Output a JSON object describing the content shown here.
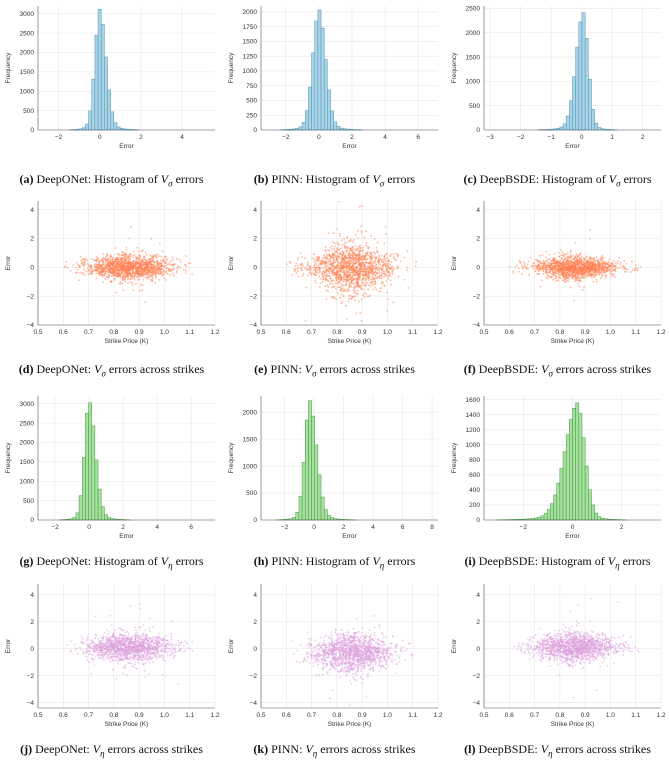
{
  "rows": [
    {
      "kind": "hist",
      "color": "#a9d4e6",
      "edge": "#4f93b8",
      "var_symbol": "V",
      "var_sub": "σ",
      "panels": [
        {
          "caption_tag": "(a)",
          "caption_text": "DeepONet: Histogram of",
          "caption_tail": "errors",
          "chart_data": {
            "type": "bar",
            "xlabel": "Error",
            "ylabel": "Frequency",
            "xlim": [
              -3,
              5.6
            ],
            "ylim": [
              0,
              3200
            ],
            "xticks": [
              -2,
              0,
              2,
              4
            ],
            "yticks": [
              0,
              500,
              1000,
              1500,
              2000,
              2500,
              3000
            ],
            "peak": 3120,
            "center": 0,
            "spread_left": 0.35,
            "spread_right": 0.45
          }
        },
        {
          "caption_tag": "(b)",
          "caption_text": "PINN: Histogram of",
          "caption_tail": "errors",
          "chart_data": {
            "type": "bar",
            "xlabel": "Error",
            "ylabel": "Frequency",
            "xlim": [
              -3.5,
              7.2
            ],
            "ylim": [
              0,
              2100
            ],
            "xticks": [
              -2,
              0,
              2,
              4,
              6
            ],
            "yticks": [
              0,
              250,
              500,
              750,
              1000,
              1250,
              1500,
              1750,
              2000
            ],
            "peak": 2050,
            "center": 0,
            "spread_left": 0.55,
            "spread_right": 0.6
          }
        },
        {
          "caption_tag": "(c)",
          "caption_text": "DeepBSDE: Histogram of",
          "caption_tail": "errors",
          "chart_data": {
            "type": "bar",
            "xlabel": "Error",
            "ylabel": "Frequency",
            "xlim": [
              -3.2,
              2.6
            ],
            "ylim": [
              0,
              2550
            ],
            "xticks": [
              -3,
              -2,
              -1,
              0,
              1,
              2
            ],
            "yticks": [
              0,
              500,
              1000,
              1500,
              2000,
              2500
            ],
            "peak": 2430,
            "center": 0.05,
            "spread_left": 0.35,
            "spread_right": 0.25
          }
        }
      ]
    },
    {
      "kind": "scatter",
      "color": "#ff7f50",
      "var_symbol": "V",
      "var_sub": "σ",
      "panels": [
        {
          "caption_tag": "(d)",
          "caption_text": "DeepONet:",
          "caption_tail": "errors across strikes",
          "chart_data": {
            "type": "scatter",
            "xlabel": "Strike Price (K)",
            "ylabel": "Error",
            "xlim": [
              0.5,
              1.2
            ],
            "ylim": [
              -4,
              4.6
            ],
            "xticks": [
              0.5,
              0.6,
              0.7,
              0.8,
              0.9,
              1.0,
              1.1,
              1.2
            ],
            "xtick_labels": [
              "0.5",
              "0.6",
              "0.7",
              "0.8",
              "0.9",
              "1.0",
              "1.1",
              "1.2"
            ],
            "yticks": [
              -4,
              -2,
              0,
              2,
              4
            ],
            "x_range": [
              0.6,
              1.12
            ],
            "spread": 0.45,
            "x_center": 0.86,
            "bias": 0
          }
        },
        {
          "caption_tag": "(e)",
          "caption_text": "PINN:",
          "caption_tail": "errors across strikes",
          "chart_data": {
            "type": "scatter",
            "xlabel": "Strike Price (K)",
            "ylabel": "Error",
            "xlim": [
              0.5,
              1.2
            ],
            "ylim": [
              -4,
              4.6
            ],
            "xticks": [
              0.5,
              0.6,
              0.7,
              0.8,
              0.9,
              1.0,
              1.1,
              1.2
            ],
            "xtick_labels": [
              "0.5",
              "0.6",
              "0.7",
              "0.8",
              "0.9",
              "1.0",
              "1.1",
              "1.2"
            ],
            "yticks": [
              -4,
              -2,
              0,
              2,
              4
            ],
            "x_range": [
              0.6,
              1.12
            ],
            "spread": 0.85,
            "x_center": 0.86,
            "bias": 0
          }
        },
        {
          "caption_tag": "(f)",
          "caption_text": "DeepBSDE:",
          "caption_tail": "errors across strikes",
          "chart_data": {
            "type": "scatter",
            "xlabel": "Strike Price (K)",
            "ylabel": "Error",
            "xlim": [
              0.5,
              1.2
            ],
            "ylim": [
              -4,
              4.6
            ],
            "xticks": [
              0.5,
              0.6,
              0.7,
              0.8,
              0.9,
              1.0,
              1.1,
              1.2
            ],
            "xtick_labels": [
              "0.5",
              "0.6",
              "0.7",
              "0.8",
              "0.9",
              "1.0",
              "1.1",
              "1.2"
            ],
            "yticks": [
              -4,
              -2,
              0,
              2,
              4
            ],
            "x_range": [
              0.6,
              1.12
            ],
            "spread": 0.38,
            "x_center": 0.86,
            "bias": 0
          }
        }
      ]
    },
    {
      "kind": "hist",
      "color": "#a8e0a0",
      "edge": "#3e9a3e",
      "var_symbol": "V",
      "var_sub": "η",
      "panels": [
        {
          "caption_tag": "(g)",
          "caption_text": "DeepONet: Histogram of",
          "caption_tail": "errors",
          "chart_data": {
            "type": "bar",
            "xlabel": "Error",
            "ylabel": "Frequency",
            "xlim": [
              -3,
              7.4
            ],
            "ylim": [
              0,
              3200
            ],
            "xticks": [
              -2,
              0,
              2,
              4,
              6
            ],
            "yticks": [
              0,
              500,
              1000,
              1500,
              2000,
              2500,
              3000
            ],
            "peak": 3100,
            "center": 0,
            "spread_left": 0.4,
            "spread_right": 0.55
          }
        },
        {
          "caption_tag": "(h)",
          "caption_text": "PINN: Histogram of",
          "caption_tail": "errors",
          "chart_data": {
            "type": "bar",
            "xlabel": "Error",
            "ylabel": "Frequency",
            "xlim": [
              -3.6,
              8.4
            ],
            "ylim": [
              0,
              2300
            ],
            "xticks": [
              -2,
              0,
              2,
              4,
              6,
              8
            ],
            "yticks": [
              0,
              500,
              1000,
              1500,
              2000
            ],
            "peak": 2220,
            "center": -0.3,
            "spread_left": 0.5,
            "spread_right": 0.7
          }
        },
        {
          "caption_tag": "(i)",
          "caption_text": "DeepBSDE: Histogram of",
          "caption_tail": "errors",
          "chart_data": {
            "type": "bar",
            "xlabel": "Error",
            "ylabel": "Frequency",
            "xlim": [
              -3.6,
              3.6
            ],
            "ylim": [
              0,
              1650
            ],
            "xticks": [
              -2,
              0,
              2
            ],
            "yticks": [
              0,
              200,
              400,
              600,
              800,
              1000,
              1200,
              1400,
              1600
            ],
            "peak": 1560,
            "center": 0.2,
            "spread_left": 0.75,
            "spread_right": 0.45
          }
        }
      ]
    },
    {
      "kind": "scatter",
      "color": "#dda0dd",
      "var_symbol": "V",
      "var_sub": "η",
      "panels": [
        {
          "caption_tag": "(j)",
          "caption_text": "DeepONet:",
          "caption_tail": "errors across strikes",
          "chart_data": {
            "type": "scatter",
            "xlabel": "Strike Price (K)",
            "ylabel": "Error",
            "xlim": [
              0.5,
              1.2
            ],
            "ylim": [
              -4.4,
              4.8
            ],
            "xticks": [
              0.5,
              0.6,
              0.7,
              0.8,
              0.9,
              1.0,
              1.1,
              1.2
            ],
            "xtick_labels": [
              "0.5",
              "0.6",
              "0.7",
              "0.8",
              "0.9",
              "1.0",
              "1.1",
              "1.2"
            ],
            "yticks": [
              -4,
              -2,
              0,
              2,
              4
            ],
            "x_range": [
              0.6,
              1.12
            ],
            "spread": 0.55,
            "x_center": 0.86,
            "bias": 0.1
          }
        },
        {
          "caption_tag": "(k)",
          "caption_text": "PINN:",
          "caption_tail": "errors across strikes",
          "chart_data": {
            "type": "scatter",
            "xlabel": "Strike Price (K)",
            "ylabel": "Error",
            "xlim": [
              0.5,
              1.2
            ],
            "ylim": [
              -4.4,
              4.8
            ],
            "xticks": [
              0.5,
              0.6,
              0.7,
              0.8,
              0.9,
              1.0,
              1.1,
              1.2
            ],
            "xtick_labels": [
              "0.5",
              "0.6",
              "0.7",
              "0.8",
              "0.9",
              "1.0",
              "1.1",
              "1.2"
            ],
            "yticks": [
              -4,
              -2,
              0,
              2,
              4
            ],
            "x_range": [
              0.6,
              1.12
            ],
            "spread": 0.75,
            "x_center": 0.86,
            "bias": -0.3
          }
        },
        {
          "caption_tag": "(l)",
          "caption_text": "DeepBSDE:",
          "caption_tail": "errors across strikes",
          "chart_data": {
            "type": "scatter",
            "xlabel": "Strike Price (K)",
            "ylabel": "Error",
            "xlim": [
              0.5,
              1.2
            ],
            "ylim": [
              -4.4,
              4.8
            ],
            "xticks": [
              0.5,
              0.6,
              0.7,
              0.8,
              0.9,
              1.0,
              1.1,
              1.2
            ],
            "xtick_labels": [
              "0.5",
              "0.6",
              "0.7",
              "0.8",
              "0.9",
              "1.0",
              "1.1",
              "1.2"
            ],
            "yticks": [
              -4,
              -2,
              0,
              2,
              4
            ],
            "x_range": [
              0.6,
              1.12
            ],
            "spread": 0.55,
            "x_center": 0.86,
            "bias": 0.1
          }
        }
      ]
    }
  ]
}
